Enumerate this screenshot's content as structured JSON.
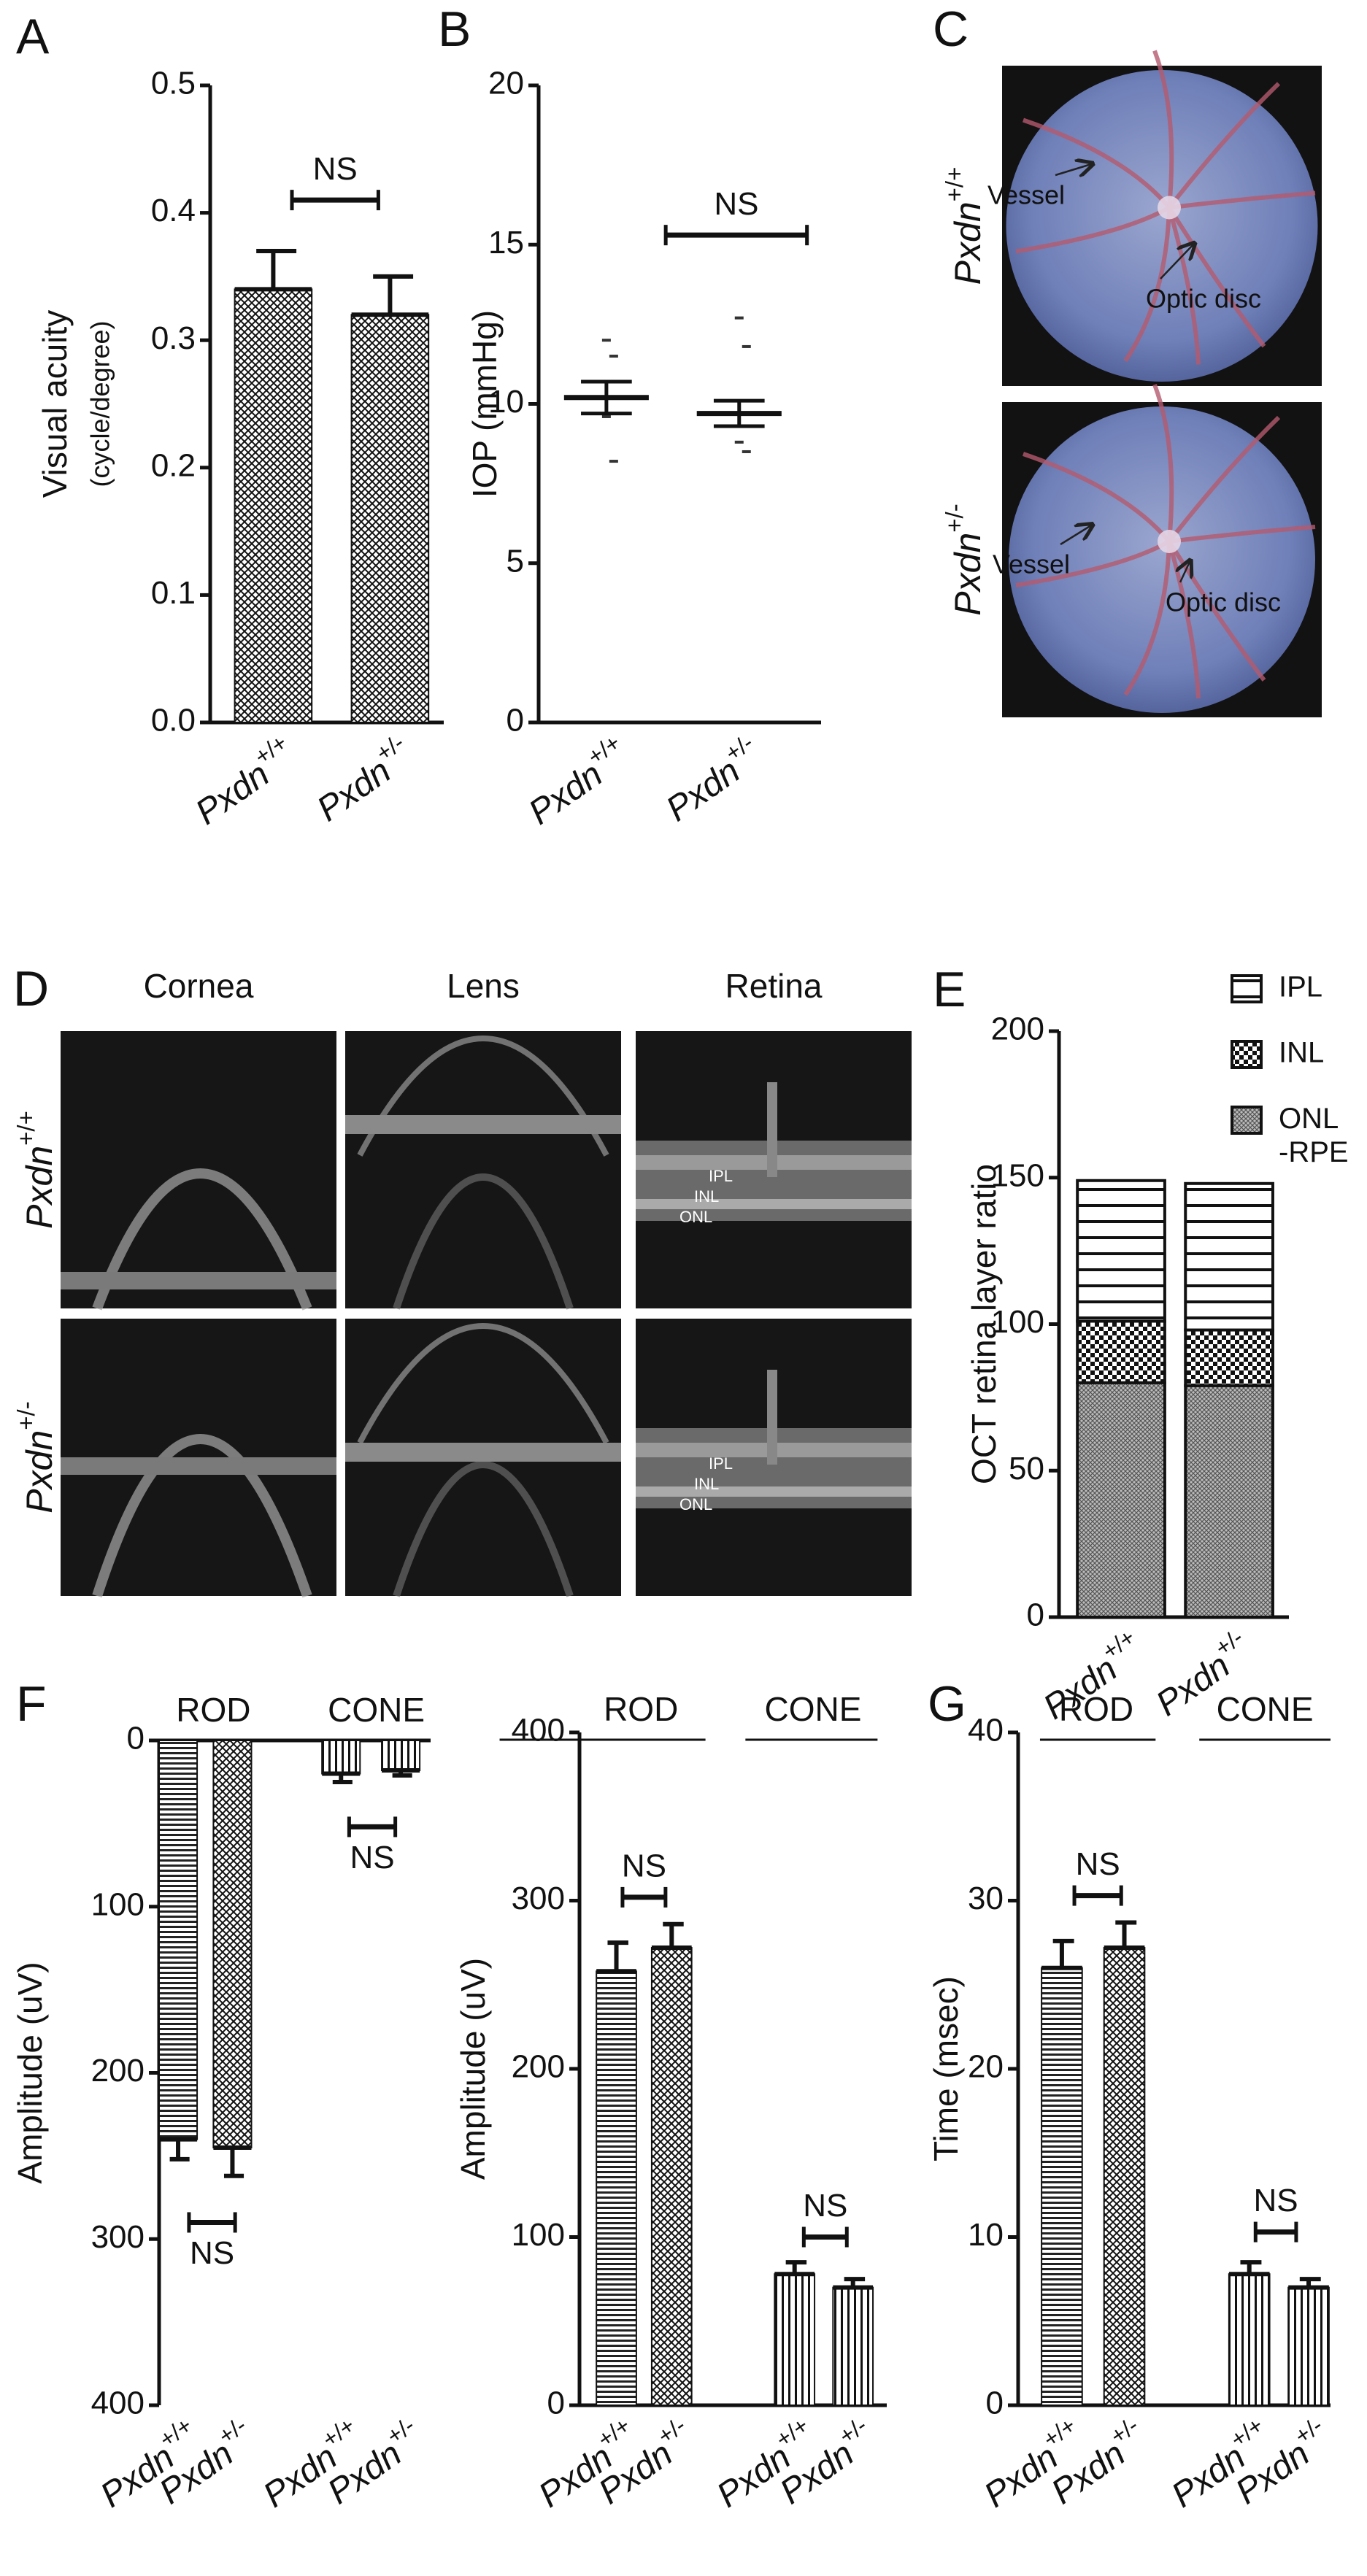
{
  "chart_data": [
    {
      "type": "bar",
      "panel": "A",
      "ylabel": "Visual acuity",
      "ylabel_sub": "(cycle/degree)",
      "categories": [
        "Pxdn",
        "Pxdn"
      ],
      "category_superscripts": [
        "+/+",
        "+/-"
      ],
      "values": [
        0.34,
        0.32
      ],
      "errors": [
        0.03,
        0.03
      ],
      "patterns": [
        "crosshatch",
        "crosshatch"
      ],
      "ylim": [
        0,
        0.5
      ],
      "yticks": [
        {
          "value": 0,
          "label": "0.0"
        },
        0.1,
        0.2,
        0.3,
        0.4,
        0.5
      ],
      "annotations": [
        "NS"
      ]
    },
    {
      "type": "dot",
      "panel": "B",
      "ylabel": "IOP (mmHg)",
      "categories": [
        "Pxdn",
        "Pxdn"
      ],
      "category_superscripts": [
        "+/+",
        "+/-"
      ],
      "means": [
        10.2,
        9.7
      ],
      "errors": [
        0.5,
        0.4
      ],
      "points": [
        [
          12,
          11.5,
          9.6,
          8.2
        ],
        [
          12.7,
          11.8,
          8.8,
          8.5
        ]
      ],
      "ylim": [
        0,
        20
      ],
      "yticks": [
        0,
        5,
        10,
        15,
        20
      ],
      "annotations": [
        "NS"
      ]
    },
    {
      "type": "stacked-bar",
      "panel": "E",
      "ylabel": "OCT retina layer ratio",
      "categories": [
        "Pxdn",
        "Pxdn"
      ],
      "category_superscripts": [
        "+/+",
        "+/-"
      ],
      "series": [
        {
          "name": "ONL -RPE",
          "pattern": "dots",
          "values": [
            80,
            79
          ]
        },
        {
          "name": "INL",
          "pattern": "checker",
          "values": [
            21,
            19
          ]
        },
        {
          "name": "IPL",
          "pattern": "horizontal",
          "values": [
            48,
            50
          ]
        }
      ],
      "ylim": [
        0,
        200
      ],
      "yticks": [
        0,
        50,
        100,
        150,
        200
      ],
      "legend": "top-right"
    },
    {
      "type": "bar",
      "panel": "F",
      "inverted": true,
      "ylabel": "Amplitude (uV)",
      "categories": [
        "Pxdn",
        "Pxdn",
        "Pxdn",
        "Pxdn"
      ],
      "category_superscripts": [
        "+/+",
        "+/-",
        "+/+",
        "+/-"
      ],
      "groups": [
        "ROD",
        "CONE"
      ],
      "values": [
        240,
        245,
        20,
        18
      ],
      "errors": [
        12,
        17,
        5,
        3
      ],
      "patterns": [
        "hfine",
        "crosshatch",
        "vertical",
        "vertical"
      ],
      "ylim": [
        0,
        400
      ],
      "yticks": [
        0,
        100,
        200,
        300,
        400
      ],
      "annotations": [
        "NS",
        "NS"
      ]
    },
    {
      "type": "bar",
      "ylabel": "Amplitude (uV)",
      "categories": [
        "Pxdn",
        "Pxdn",
        "Pxdn",
        "Pxdn"
      ],
      "category_superscripts": [
        "+/+",
        "+/-",
        "+/+",
        "+/-"
      ],
      "groups": [
        "ROD",
        "CONE"
      ],
      "values": [
        258,
        272,
        78,
        70
      ],
      "errors": [
        17,
        14,
        7,
        5
      ],
      "patterns": [
        "hfine",
        "crosshatch",
        "vertical",
        "vertical"
      ],
      "ylim": [
        0,
        400
      ],
      "yticks": [
        0,
        100,
        200,
        300,
        400
      ],
      "annotations": [
        "NS",
        "NS"
      ]
    },
    {
      "type": "bar",
      "panel": "G",
      "ylabel": "Time (msec)",
      "categories": [
        "Pxdn",
        "Pxdn",
        "Pxdn",
        "Pxdn"
      ],
      "category_superscripts": [
        "+/+",
        "+/-",
        "+/+",
        "+/-"
      ],
      "groups": [
        "ROD",
        "CONE"
      ],
      "values": [
        26,
        27.2,
        7.8,
        7
      ],
      "errors": [
        1.6,
        1.5,
        0.7,
        0.5
      ],
      "patterns": [
        "hfine",
        "crosshatch",
        "vertical",
        "vertical"
      ],
      "ylim": [
        0,
        40
      ],
      "yticks": [
        0,
        10,
        20,
        30,
        40
      ],
      "annotations": [
        "NS",
        "NS"
      ]
    }
  ],
  "photos": {
    "panel": "C",
    "rows": [
      {
        "label": "Pxdn",
        "superscript": "+/+",
        "callouts": [
          "Vessel",
          "Optic disc"
        ]
      },
      {
        "label": "Pxdn",
        "superscript": "+/-",
        "callouts": [
          "Vessel",
          "Optic disc"
        ]
      }
    ]
  },
  "oct": {
    "panel": "D",
    "columns": [
      "Cornea",
      "Lens",
      "Retina"
    ],
    "rows": [
      {
        "label": "Pxdn",
        "superscript": "+/+",
        "layers": [
          "IPL",
          "INL",
          "ONL"
        ]
      },
      {
        "label": "Pxdn",
        "superscript": "+/-",
        "layers": [
          "IPL",
          "INL",
          "ONL"
        ]
      }
    ]
  }
}
